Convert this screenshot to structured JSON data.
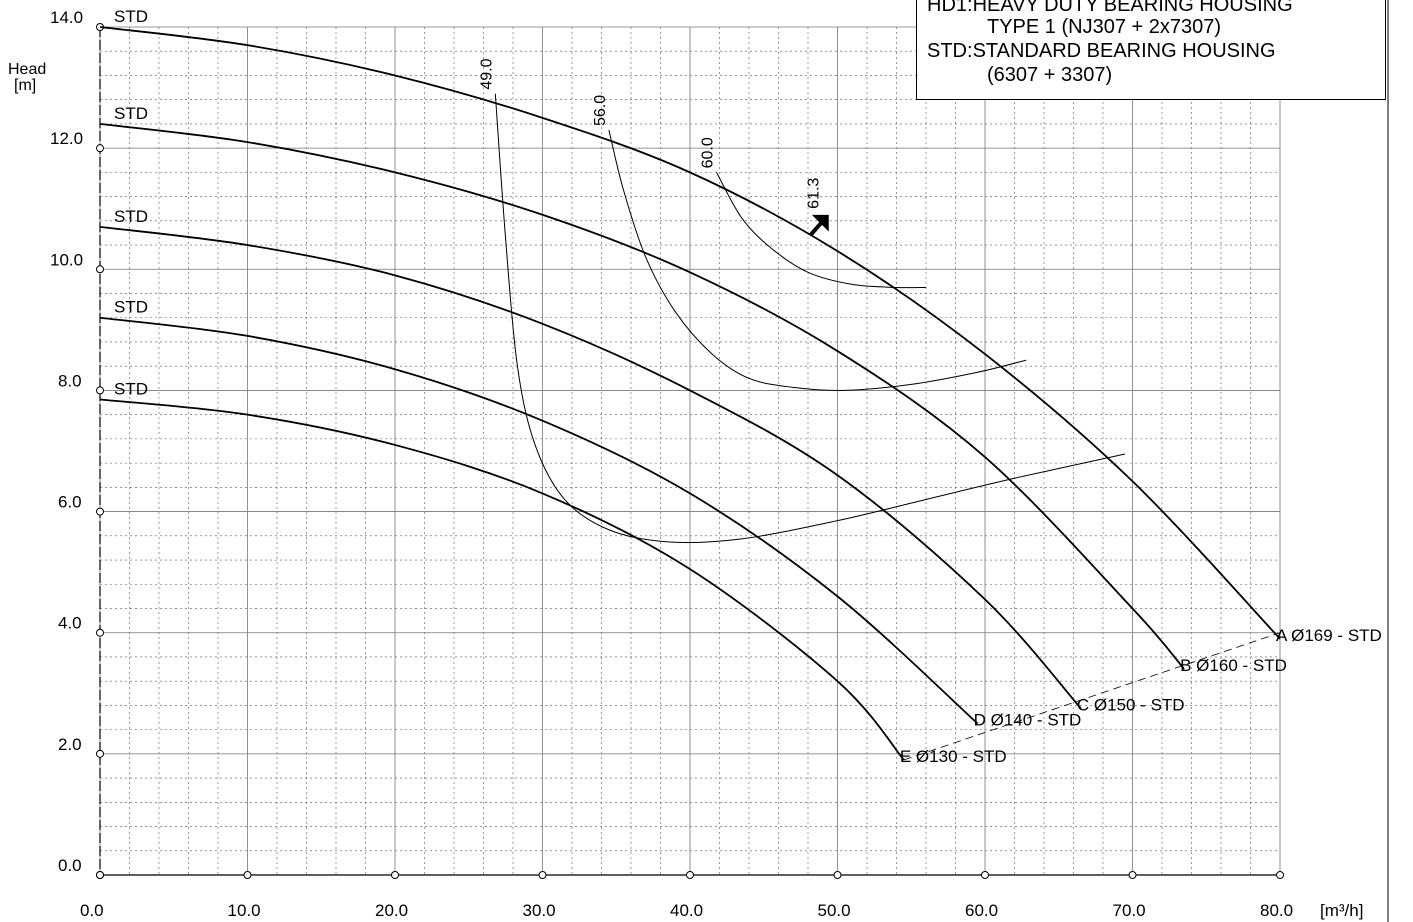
{
  "chart_data": {
    "type": "line",
    "title": "",
    "xlabel": "[m³/h]",
    "ylabel": "Head\n[m]",
    "ylabel_lines": [
      "Head",
      "[m]"
    ],
    "xlim": [
      0,
      80
    ],
    "ylim": [
      0,
      14
    ],
    "x_ticks": [
      0,
      10,
      20,
      30,
      40,
      50,
      60,
      70,
      80
    ],
    "x_tick_labels": [
      "0.0",
      "10.0",
      "20.0",
      "30.0",
      "40.0",
      "50.0",
      "60.0",
      "70.0",
      "80.0"
    ],
    "y_ticks": [
      0,
      2,
      4,
      6,
      8,
      10,
      12,
      14
    ],
    "y_tick_labels": [
      "0.0",
      "2.0",
      "4.0",
      "6.0",
      "8.0",
      "10.0",
      "12.0",
      "14.0"
    ],
    "grid": true,
    "legend": {
      "placement": "top-right",
      "lines": [
        {
          "key": "HD1",
          "sep": ":",
          "text": "HEAVY DUTY BEARING HOUSING"
        },
        {
          "key": "",
          "sep": "",
          "text": "TYPE 1 (NJ307 + 2x7307)"
        },
        {
          "key": "STD",
          "sep": ":",
          "text": "STANDARD BEARING HOUSING"
        },
        {
          "key": "",
          "sep": "",
          "text": "(6307 + 3307)"
        }
      ]
    },
    "series": [
      {
        "name": "A  Ø169 - STD",
        "start_label": "STD",
        "x": [
          0,
          10,
          20,
          30,
          40,
          50,
          60,
          70,
          80
        ],
        "y": [
          14.0,
          13.7,
          13.2,
          12.5,
          11.6,
          10.3,
          8.6,
          6.5,
          3.9
        ]
      },
      {
        "name": "B  Ø160 - STD",
        "start_label": "STD",
        "x": [
          0,
          10,
          20,
          30,
          40,
          50,
          60,
          70,
          73.5
        ],
        "y": [
          12.4,
          12.1,
          11.6,
          10.9,
          9.95,
          8.65,
          6.9,
          4.4,
          3.4
        ]
      },
      {
        "name": "C  Ø150 - STD",
        "start_label": "STD",
        "x": [
          0,
          10,
          20,
          30,
          40,
          50,
          60,
          66.5
        ],
        "y": [
          10.7,
          10.4,
          9.9,
          9.1,
          8.0,
          6.6,
          4.55,
          2.75
        ]
      },
      {
        "name": "D  Ø140 - STD",
        "start_label": "STD",
        "x": [
          0,
          10,
          20,
          30,
          40,
          50,
          59.5
        ],
        "y": [
          9.2,
          8.9,
          8.35,
          7.5,
          6.3,
          4.6,
          2.5
        ]
      },
      {
        "name": "E  Ø130 - STD",
        "start_label": "STD",
        "x": [
          0,
          10,
          20,
          30,
          40,
          50,
          54.5
        ],
        "y": [
          7.85,
          7.6,
          7.1,
          6.3,
          5.05,
          3.2,
          1.9
        ]
      }
    ],
    "efficiency_curves": [
      {
        "label": "49.0",
        "x": [
          26.8,
          27.5,
          28.3,
          29.5,
          31.5,
          34.5,
          38.5,
          43.5,
          50.0,
          56.0,
          62.0,
          69.5
        ],
        "y": [
          12.9,
          10.5,
          8.4,
          7.1,
          6.2,
          5.7,
          5.5,
          5.55,
          5.85,
          6.2,
          6.55,
          6.95
        ]
      },
      {
        "label": "56.0",
        "x": [
          34.5,
          35.5,
          37.0,
          39.0,
          41.5,
          44.0,
          47.0,
          50.5,
          55.0,
          59.5,
          62.8
        ],
        "y": [
          12.3,
          11.3,
          10.2,
          9.3,
          8.6,
          8.2,
          8.05,
          8.0,
          8.1,
          8.3,
          8.5
        ]
      },
      {
        "label": "60.0",
        "x": [
          41.8,
          43.5,
          45.5,
          48.0,
          51.0,
          54.0,
          56.0
        ],
        "y": [
          11.6,
          10.85,
          10.35,
          9.95,
          9.75,
          9.7,
          9.7
        ]
      }
    ],
    "bep_marker": {
      "label": "61.3",
      "x": 49.0,
      "y": 10.8
    },
    "end_points_dashed_line": {
      "x": [
        54.5,
        80.0
      ],
      "y": [
        1.9,
        4.0
      ]
    }
  }
}
